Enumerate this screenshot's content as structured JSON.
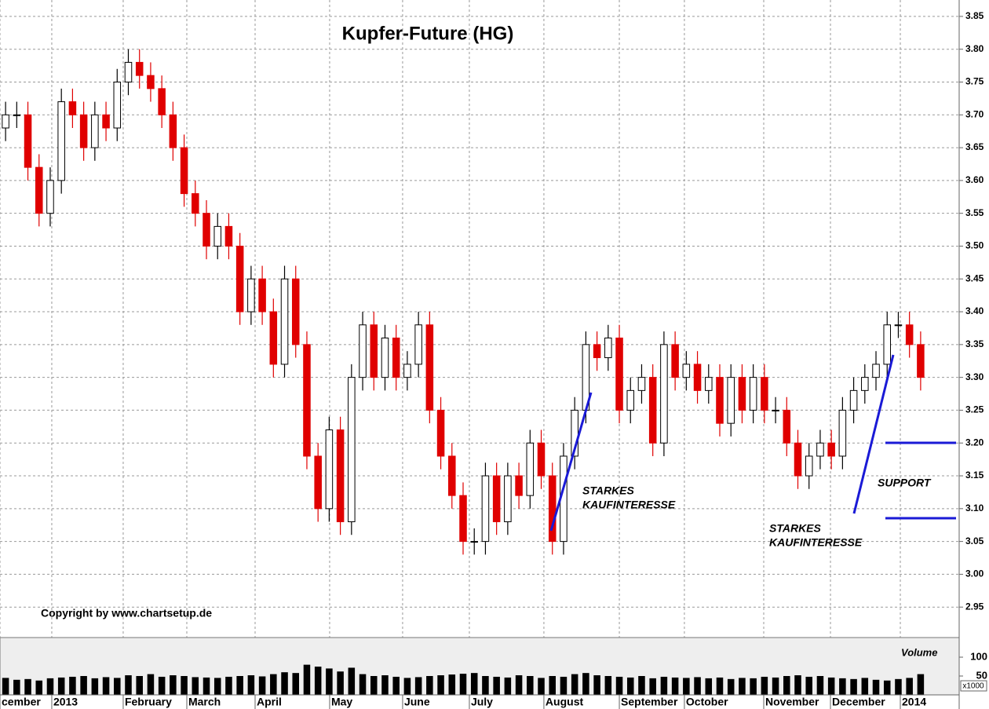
{
  "chart_data": [
    {
      "type": "candlestick",
      "title": "Kupfer-Future (HG)",
      "copyright": "Copyright by www.chartsetup.de",
      "annotations": [
        [
          "STARKES",
          "KAUFINTERESSE"
        ],
        [
          "STARKES",
          "KAUFINTERESSE"
        ],
        [
          "SUPPORT"
        ]
      ],
      "up_color": "#ffffff",
      "down_color": "#e00000",
      "grid": true,
      "xlim": [
        0,
        83
      ],
      "xticks": [
        {
          "value": 0,
          "label": "cember"
        },
        {
          "value": 4.64,
          "label": "2013"
        },
        {
          "value": 11.04,
          "label": "February"
        },
        {
          "value": 16.74,
          "label": "March"
        },
        {
          "value": 22.86,
          "label": "April"
        },
        {
          "value": 29.54,
          "label": "May"
        },
        {
          "value": 36.08,
          "label": "June"
        },
        {
          "value": 42.06,
          "label": "July"
        },
        {
          "value": 48.74,
          "label": "August"
        },
        {
          "value": 55.5,
          "label": "September"
        },
        {
          "value": 61.33,
          "label": "October"
        },
        {
          "value": 68.44,
          "label": "November"
        },
        {
          "value": 74.42,
          "label": "December"
        },
        {
          "value": 80.68,
          "label": "2014"
        }
      ],
      "ylim": [
        2.9,
        3.875
      ],
      "yticks": [
        2.95,
        {
          "value": 3,
          "label": "3.00"
        },
        3.05,
        {
          "value": 3.1,
          "label": "3.10"
        },
        3.15,
        {
          "value": 3.2,
          "label": "3.20"
        },
        3.25,
        {
          "value": 3.3,
          "label": "3.30"
        },
        3.35,
        {
          "value": 3.4,
          "label": "3.40"
        },
        3.45,
        {
          "value": 3.5,
          "label": "3.50"
        },
        3.55,
        {
          "value": 3.6,
          "label": "3.60"
        },
        3.65,
        {
          "value": 3.7,
          "label": "3.70"
        },
        3.75,
        {
          "value": 3.8,
          "label": "3.80"
        },
        3.85
      ],
      "open": [
        3.68,
        3.7,
        3.7,
        3.62,
        3.55,
        3.6,
        3.72,
        3.7,
        3.65,
        3.7,
        3.68,
        3.75,
        3.78,
        3.76,
        3.74,
        3.7,
        3.65,
        3.58,
        3.55,
        3.5,
        3.53,
        3.5,
        3.4,
        3.45,
        3.4,
        3.32,
        3.45,
        3.35,
        3.18,
        3.1,
        3.22,
        3.08,
        3.3,
        3.38,
        3.3,
        3.36,
        3.3,
        3.32,
        3.38,
        3.25,
        3.18,
        3.12,
        3.05,
        3.05,
        3.15,
        3.08,
        3.15,
        3.12,
        3.2,
        3.15,
        3.05,
        3.18,
        3.25,
        3.35,
        3.33,
        3.36,
        3.25,
        3.28,
        3.3,
        3.2,
        3.35,
        3.3,
        3.32,
        3.28,
        3.3,
        3.23,
        3.3,
        3.25,
        3.3,
        3.25,
        3.25,
        3.2,
        3.15,
        3.18,
        3.2,
        3.18,
        3.25,
        3.28,
        3.3,
        3.32,
        3.38,
        3.38,
        3.35
      ],
      "high": [
        3.72,
        3.72,
        3.72,
        3.64,
        3.62,
        3.74,
        3.74,
        3.72,
        3.72,
        3.72,
        3.77,
        3.8,
        3.8,
        3.78,
        3.76,
        3.72,
        3.67,
        3.6,
        3.57,
        3.55,
        3.55,
        3.52,
        3.47,
        3.47,
        3.42,
        3.47,
        3.47,
        3.37,
        3.2,
        3.24,
        3.24,
        3.32,
        3.4,
        3.4,
        3.38,
        3.38,
        3.34,
        3.4,
        3.4,
        3.27,
        3.2,
        3.14,
        3.07,
        3.17,
        3.17,
        3.17,
        3.17,
        3.22,
        3.22,
        3.17,
        3.2,
        3.27,
        3.37,
        3.37,
        3.38,
        3.38,
        3.3,
        3.32,
        3.32,
        3.37,
        3.37,
        3.34,
        3.34,
        3.32,
        3.32,
        3.32,
        3.32,
        3.32,
        3.32,
        3.27,
        3.27,
        3.22,
        3.2,
        3.22,
        3.22,
        3.27,
        3.3,
        3.32,
        3.34,
        3.4,
        3.4,
        3.4,
        3.37
      ],
      "low": [
        3.66,
        3.68,
        3.6,
        3.53,
        3.53,
        3.58,
        3.68,
        3.63,
        3.63,
        3.66,
        3.66,
        3.73,
        3.74,
        3.72,
        3.68,
        3.63,
        3.56,
        3.53,
        3.48,
        3.48,
        3.48,
        3.38,
        3.38,
        3.38,
        3.3,
        3.3,
        3.33,
        3.16,
        3.08,
        3.08,
        3.06,
        3.06,
        3.28,
        3.28,
        3.28,
        3.28,
        3.28,
        3.3,
        3.23,
        3.16,
        3.1,
        3.03,
        3.03,
        3.03,
        3.06,
        3.06,
        3.1,
        3.1,
        3.13,
        3.03,
        3.03,
        3.16,
        3.23,
        3.31,
        3.31,
        3.23,
        3.23,
        3.26,
        3.18,
        3.18,
        3.28,
        3.28,
        3.26,
        3.26,
        3.21,
        3.21,
        3.23,
        3.23,
        3.23,
        3.23,
        3.18,
        3.13,
        3.13,
        3.16,
        3.16,
        3.16,
        3.23,
        3.26,
        3.28,
        3.3,
        3.36,
        3.33,
        3.28
      ],
      "close": [
        3.7,
        3.7,
        3.62,
        3.55,
        3.6,
        3.72,
        3.7,
        3.65,
        3.7,
        3.68,
        3.75,
        3.78,
        3.76,
        3.74,
        3.7,
        3.65,
        3.58,
        3.55,
        3.5,
        3.53,
        3.5,
        3.4,
        3.45,
        3.4,
        3.32,
        3.45,
        3.35,
        3.18,
        3.1,
        3.22,
        3.08,
        3.3,
        3.38,
        3.3,
        3.36,
        3.3,
        3.32,
        3.38,
        3.25,
        3.18,
        3.12,
        3.05,
        3.05,
        3.15,
        3.08,
        3.15,
        3.12,
        3.2,
        3.15,
        3.05,
        3.18,
        3.25,
        3.35,
        3.33,
        3.36,
        3.25,
        3.28,
        3.3,
        3.2,
        3.35,
        3.3,
        3.32,
        3.28,
        3.3,
        3.23,
        3.3,
        3.25,
        3.3,
        3.25,
        3.25,
        3.2,
        3.15,
        3.18,
        3.2,
        3.18,
        3.25,
        3.28,
        3.3,
        3.32,
        3.38,
        3.38,
        3.35,
        3.3
      ]
    },
    {
      "type": "bar",
      "label": "Volume",
      "unit": "x1000",
      "color": "#000000",
      "ylim": [
        0,
        150
      ],
      "yticks": [
        50,
        100
      ],
      "values": [
        45,
        40,
        42,
        38,
        44,
        46,
        48,
        50,
        44,
        47,
        45,
        52,
        50,
        55,
        48,
        52,
        50,
        47,
        46,
        45,
        48,
        50,
        52,
        49,
        55,
        60,
        58,
        80,
        75,
        70,
        62,
        72,
        55,
        50,
        52,
        48,
        45,
        47,
        50,
        52,
        54,
        56,
        58,
        50,
        48,
        46,
        52,
        50,
        45,
        50,
        48,
        55,
        58,
        52,
        50,
        48,
        46,
        50,
        44,
        48,
        46,
        45,
        47,
        44,
        46,
        42,
        45,
        44,
        48,
        46,
        50,
        52,
        48,
        50,
        46,
        44,
        42,
        45,
        40,
        38,
        42,
        45,
        55
      ]
    }
  ]
}
